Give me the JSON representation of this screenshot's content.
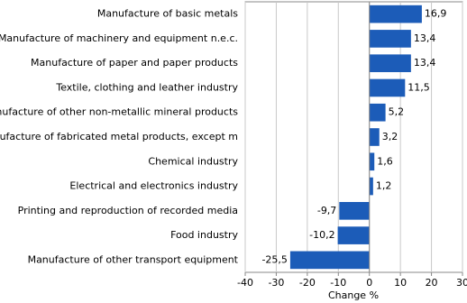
{
  "chart_data": {
    "type": "bar",
    "orientation": "horizontal",
    "x_label": "Change %",
    "categories": [
      "Manufacture of basic metals",
      "Manufacture of machinery and equipment n.e.c.",
      "Manufacture of paper and paper products",
      "Textile, clothing and leather industry",
      "Manufacture of other non-metallic mineral products",
      "Manufacture of fabricated metal products, except m",
      "Chemical industry",
      "Electrical and electronics industry",
      "Printing and reproduction of recorded media",
      "Food industry",
      "Manufacture of other transport equipment"
    ],
    "values": [
      16.9,
      13.4,
      13.4,
      11.5,
      5.2,
      3.2,
      1.6,
      1.2,
      -9.7,
      -10.2,
      -25.5
    ],
    "value_labels": [
      "16,9",
      "13,4",
      "13,4",
      "11,5",
      "5,2",
      "3,2",
      "1,6",
      "1,2",
      "-9,7",
      "-10,2",
      "-25,5"
    ],
    "color": "#1c5cb8",
    "xlim": [
      -40,
      30
    ],
    "xticks": [
      -40,
      -30,
      -20,
      -10,
      0,
      10,
      20,
      30
    ],
    "grid": true
  }
}
